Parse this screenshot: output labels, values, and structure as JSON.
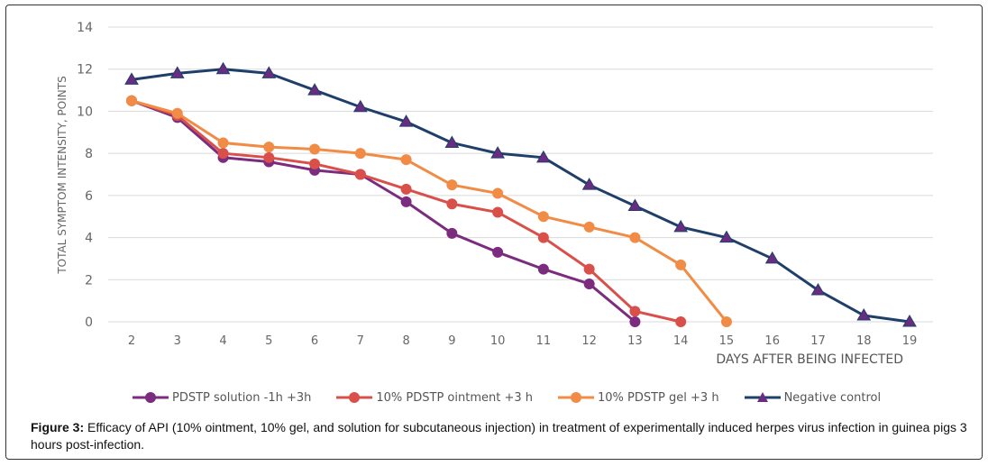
{
  "chart_data": {
    "type": "line",
    "title": "",
    "xlabel": "DAYS AFTER BEING INFECTED",
    "ylabel": "TOTAL SYMPTOM INTENSITY, POINTS",
    "ylim": [
      0,
      14
    ],
    "yticks": [
      0,
      2,
      4,
      6,
      8,
      10,
      12,
      14
    ],
    "x": [
      2,
      3,
      4,
      5,
      6,
      7,
      8,
      9,
      10,
      11,
      12,
      13,
      14,
      15,
      16,
      17,
      18,
      19
    ],
    "grid": true,
    "legend_position": "bottom",
    "series": [
      {
        "name": "PDSTP solution -1h +3h",
        "color": "#7B2C7E",
        "marker": "circle",
        "x": [
          2,
          3,
          4,
          5,
          6,
          7,
          8,
          9,
          10,
          11,
          12,
          13
        ],
        "values": [
          10.5,
          9.7,
          7.8,
          7.6,
          7.2,
          7.0,
          5.7,
          4.2,
          3.3,
          2.5,
          1.8,
          0
        ]
      },
      {
        "name": "10% PDSTP ointment +3 h",
        "color": "#D9504A",
        "marker": "circle",
        "x": [
          2,
          3,
          4,
          5,
          6,
          7,
          8,
          9,
          10,
          11,
          12,
          13,
          14
        ],
        "values": [
          10.5,
          9.8,
          8.0,
          7.8,
          7.5,
          7.0,
          6.3,
          5.6,
          5.2,
          4.0,
          2.5,
          0.5,
          0
        ]
      },
      {
        "name": "10% PDSTP gel +3 h",
        "color": "#F08C46",
        "marker": "circle",
        "x": [
          2,
          3,
          4,
          5,
          6,
          7,
          8,
          9,
          10,
          11,
          12,
          13,
          14,
          15
        ],
        "values": [
          10.5,
          9.9,
          8.5,
          8.3,
          8.2,
          8.0,
          7.7,
          6.5,
          6.1,
          5.0,
          4.5,
          4.0,
          2.7,
          0
        ]
      },
      {
        "name": "Negative control",
        "color": "#1F3F6B",
        "marker": "triangle",
        "marker_color": "#6A2C80",
        "x": [
          2,
          3,
          4,
          5,
          6,
          7,
          8,
          9,
          10,
          11,
          12,
          13,
          14,
          15,
          16,
          17,
          18,
          19
        ],
        "values": [
          11.5,
          11.8,
          12.0,
          11.8,
          11.0,
          10.2,
          9.5,
          8.5,
          8.0,
          7.8,
          6.5,
          5.5,
          4.5,
          4.0,
          3.0,
          1.5,
          0.3,
          0
        ]
      }
    ]
  },
  "caption": {
    "label": "Figure 3:",
    "text": " Efficacy of API (10% ointment, 10% gel, and solution for subcutaneous injection) in treatment of experimentally induced herpes virus infection in guinea pigs 3 hours post-infection."
  }
}
